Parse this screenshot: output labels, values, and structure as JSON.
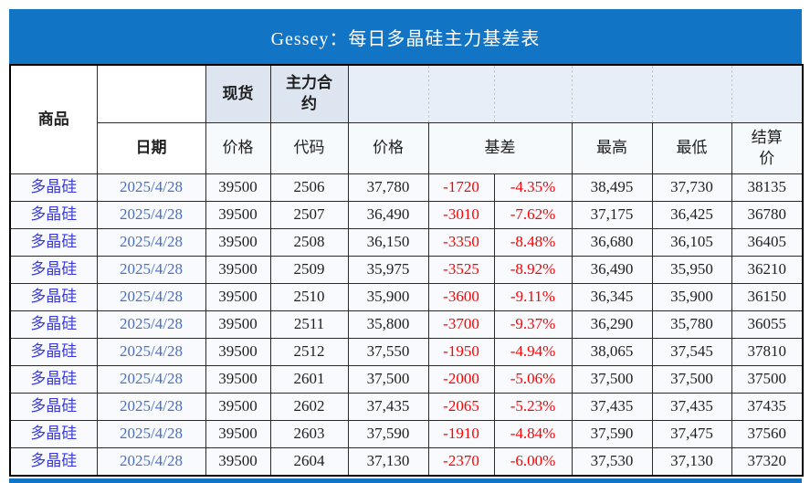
{
  "title": "Gessey：每日多晶硅主力基差表",
  "colors": {
    "title_bar_blue": "#1274c5",
    "header_fill": "#dde6f0",
    "header_fill_light": "#e7eef7",
    "commodity_text_blue": "#3b3bdb",
    "date_text_blue": "#4a6fbe",
    "basis_negative_red": "#ff0000",
    "body_text_black": "#1f1f1f"
  },
  "table": {
    "header": {
      "commodity": "商品",
      "date": "日期",
      "spot": "现货",
      "main_contract": "主力合约",
      "spot_price": "价格",
      "code": "代码",
      "main_price": "价格",
      "basis": "基差",
      "high": "最高",
      "low": "最低",
      "settlement": "结算价"
    },
    "rows": [
      {
        "commodity": "多晶硅",
        "date": "2025/4/28",
        "spot_price": "39500",
        "code": "2506",
        "price": "37,780",
        "basis": "-1720",
        "basis_pct": "-4.35%",
        "high": "38,495",
        "low": "37,730",
        "settle": "38135"
      },
      {
        "commodity": "多晶硅",
        "date": "2025/4/28",
        "spot_price": "39500",
        "code": "2507",
        "price": "36,490",
        "basis": "-3010",
        "basis_pct": "-7.62%",
        "high": "37,175",
        "low": "36,425",
        "settle": "36780"
      },
      {
        "commodity": "多晶硅",
        "date": "2025/4/28",
        "spot_price": "39500",
        "code": "2508",
        "price": "36,150",
        "basis": "-3350",
        "basis_pct": "-8.48%",
        "high": "36,680",
        "low": "36,105",
        "settle": "36405"
      },
      {
        "commodity": "多晶硅",
        "date": "2025/4/28",
        "spot_price": "39500",
        "code": "2509",
        "price": "35,975",
        "basis": "-3525",
        "basis_pct": "-8.92%",
        "high": "36,490",
        "low": "35,950",
        "settle": "36210"
      },
      {
        "commodity": "多晶硅",
        "date": "2025/4/28",
        "spot_price": "39500",
        "code": "2510",
        "price": "35,900",
        "basis": "-3600",
        "basis_pct": "-9.11%",
        "high": "36,345",
        "low": "35,900",
        "settle": "36150"
      },
      {
        "commodity": "多晶硅",
        "date": "2025/4/28",
        "spot_price": "39500",
        "code": "2511",
        "price": "35,800",
        "basis": "-3700",
        "basis_pct": "-9.37%",
        "high": "36,290",
        "low": "35,780",
        "settle": "36055"
      },
      {
        "commodity": "多晶硅",
        "date": "2025/4/28",
        "spot_price": "39500",
        "code": "2512",
        "price": "37,550",
        "basis": "-1950",
        "basis_pct": "-4.94%",
        "high": "38,065",
        "low": "37,545",
        "settle": "37810"
      },
      {
        "commodity": "多晶硅",
        "date": "2025/4/28",
        "spot_price": "39500",
        "code": "2601",
        "price": "37,500",
        "basis": "-2000",
        "basis_pct": "-5.06%",
        "high": "37,500",
        "low": "37,500",
        "settle": "37500"
      },
      {
        "commodity": "多晶硅",
        "date": "2025/4/28",
        "spot_price": "39500",
        "code": "2602",
        "price": "37,435",
        "basis": "-2065",
        "basis_pct": "-5.23%",
        "high": "37,435",
        "low": "37,435",
        "settle": "37435"
      },
      {
        "commodity": "多晶硅",
        "date": "2025/4/28",
        "spot_price": "39500",
        "code": "2603",
        "price": "37,590",
        "basis": "-1910",
        "basis_pct": "-4.84%",
        "high": "37,590",
        "low": "37,475",
        "settle": "37560"
      },
      {
        "commodity": "多晶硅",
        "date": "2025/4/28",
        "spot_price": "39500",
        "code": "2604",
        "price": "37,130",
        "basis": "-2370",
        "basis_pct": "-6.00%",
        "high": "37,530",
        "low": "37,130",
        "settle": "37320"
      }
    ]
  }
}
